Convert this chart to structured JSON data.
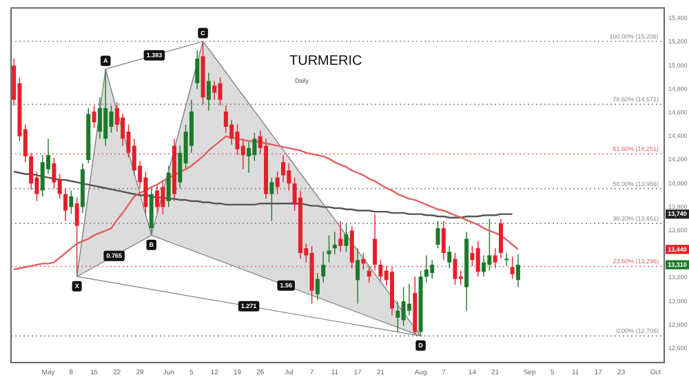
{
  "chart_data": {
    "type": "candlestick",
    "title": "TURMERIC",
    "subtitle": "Daily",
    "categories": [
      null,
      null,
      null,
      null,
      null,
      null,
      "May",
      null,
      null,
      null,
      "8",
      null,
      null,
      null,
      "15",
      null,
      null,
      null,
      "22",
      null,
      null,
      null,
      "29",
      null,
      null,
      null,
      null,
      "Jun",
      null,
      null,
      null,
      "5",
      null,
      null,
      null,
      "12",
      null,
      null,
      null,
      "19",
      null,
      null,
      null,
      "26",
      null,
      null,
      null,
      null,
      "Jul",
      null,
      null,
      null,
      "7",
      null,
      null,
      null,
      "11",
      null,
      null,
      null,
      "17",
      null,
      null,
      null,
      "21",
      null,
      null,
      null,
      null,
      null,
      null,
      "Aug",
      null,
      null,
      null,
      "7",
      null,
      null,
      null,
      null,
      "14",
      null,
      null,
      null,
      "21",
      null,
      null,
      null,
      null,
      null,
      "Sep",
      null,
      null,
      null,
      "5",
      null,
      null,
      null,
      "11",
      null,
      null,
      null,
      "17",
      null,
      null,
      null,
      "23",
      null,
      null,
      null,
      null,
      null,
      "Oct",
      null
    ],
    "ohlc": [
      [
        15000,
        15060,
        14660,
        14710
      ],
      [
        14850,
        14900,
        14360,
        14400
      ],
      [
        14460,
        14500,
        14180,
        14230
      ],
      [
        14230,
        14260,
        13950,
        14000
      ],
      [
        14050,
        14100,
        13850,
        13910
      ],
      [
        13940,
        14240,
        13890,
        14180
      ],
      [
        14120,
        14380,
        14080,
        14240
      ],
      [
        14170,
        14220,
        13960,
        14010
      ],
      [
        14030,
        14080,
        13870,
        13910
      ],
      [
        13910,
        13960,
        13680,
        13770
      ],
      [
        13800,
        13940,
        13740,
        13890
      ],
      [
        13830,
        13880,
        13210,
        13640
      ],
      [
        13800,
        14170,
        13750,
        14120
      ],
      [
        14200,
        14640,
        14170,
        14590
      ],
      [
        14610,
        14660,
        14470,
        14520
      ],
      [
        14440,
        14730,
        14380,
        14640
      ],
      [
        14380,
        14970,
        14320,
        14640
      ],
      [
        14480,
        14660,
        14430,
        14610
      ],
      [
        14640,
        14690,
        14440,
        14500
      ],
      [
        14560,
        14590,
        14320,
        14380
      ],
      [
        14440,
        14500,
        14220,
        14260
      ],
      [
        14320,
        14380,
        14070,
        14110
      ],
      [
        14150,
        14190,
        13960,
        14010
      ],
      [
        14050,
        14100,
        13740,
        13800
      ],
      [
        13620,
        13960,
        13560,
        13910
      ],
      [
        13940,
        13980,
        13750,
        13800
      ],
      [
        13970,
        14030,
        13740,
        13800
      ],
      [
        13850,
        14150,
        13800,
        14090
      ],
      [
        14320,
        14380,
        13850,
        13910
      ],
      [
        14010,
        14320,
        13960,
        14260
      ],
      [
        14170,
        14500,
        14120,
        14440
      ],
      [
        14320,
        14710,
        14260,
        14610
      ],
      [
        14850,
        15130,
        14800,
        15060
      ],
      [
        15080,
        15206,
        14670,
        14730
      ],
      [
        14710,
        14940,
        14620,
        14870
      ],
      [
        14830,
        14870,
        14710,
        14770
      ],
      [
        14850,
        14900,
        14660,
        14710
      ],
      [
        14610,
        14660,
        14430,
        14480
      ],
      [
        14500,
        14540,
        14330,
        14380
      ],
      [
        14440,
        14500,
        14240,
        14290
      ],
      [
        14320,
        14380,
        14120,
        14240
      ],
      [
        14230,
        14350,
        14090,
        14300
      ],
      [
        14240,
        14430,
        14190,
        14380
      ],
      [
        14400,
        14450,
        14250,
        14300
      ],
      [
        14320,
        14380,
        13870,
        13910
      ],
      [
        13910,
        14050,
        13680,
        14010
      ],
      [
        14050,
        14100,
        13910,
        13970
      ],
      [
        14180,
        14240,
        14010,
        14070
      ],
      [
        14110,
        14170,
        13940,
        14000
      ],
      [
        14000,
        14050,
        13770,
        13820
      ],
      [
        13880,
        13940,
        13360,
        13410
      ],
      [
        13450,
        13490,
        13330,
        13390
      ],
      [
        13410,
        13470,
        12980,
        13090
      ],
      [
        13060,
        13240,
        13010,
        13190
      ],
      [
        13210,
        13420,
        13160,
        13310
      ],
      [
        13400,
        13560,
        13330,
        13430
      ],
      [
        13450,
        13590,
        13400,
        13480
      ],
      [
        13530,
        13680,
        13420,
        13470
      ],
      [
        13470,
        13660,
        13420,
        13570
      ],
      [
        13600,
        13640,
        13280,
        13330
      ],
      [
        13180,
        13450,
        12980,
        13350
      ],
      [
        13360,
        13410,
        13270,
        13320
      ],
      [
        13260,
        13300,
        13160,
        13210
      ],
      [
        13530,
        13740,
        13260,
        13310
      ],
      [
        13310,
        13350,
        13160,
        13210
      ],
      [
        13260,
        13300,
        13130,
        13180
      ],
      [
        13250,
        13290,
        12880,
        12940
      ],
      [
        12860,
        13000,
        12740,
        12920
      ],
      [
        12840,
        13120,
        12790,
        13000
      ],
      [
        12920,
        13150,
        12880,
        12980
      ],
      [
        13070,
        13210,
        12720,
        12740
      ],
      [
        12740,
        13260,
        12706,
        13210
      ],
      [
        13210,
        13390,
        13160,
        13270
      ],
      [
        13240,
        13350,
        13190,
        13310
      ],
      [
        13480,
        13680,
        13450,
        13620
      ],
      [
        13620,
        13680,
        13350,
        13410
      ],
      [
        13330,
        13470,
        13280,
        13420
      ],
      [
        13360,
        13410,
        13140,
        13190
      ],
      [
        13210,
        13260,
        13140,
        13190
      ],
      [
        13120,
        13590,
        12920,
        13530
      ],
      [
        13410,
        13470,
        13300,
        13350
      ],
      [
        13450,
        13510,
        13210,
        13250
      ],
      [
        13250,
        13390,
        13210,
        13330
      ],
      [
        13310,
        13700,
        13260,
        13390
      ],
      [
        13390,
        13450,
        13280,
        13330
      ],
      [
        13660,
        13700,
        13360,
        13410
      ],
      [
        13350,
        13410,
        13300,
        13360
      ],
      [
        13290,
        13380,
        13190,
        13230
      ],
      [
        13180,
        13400,
        13120,
        13310
      ],
      null,
      null,
      null,
      null,
      null,
      null,
      null,
      null,
      null,
      null,
      null,
      null,
      null,
      null,
      null,
      null,
      null,
      null,
      null,
      null,
      null,
      null,
      null,
      null,
      null
    ],
    "series": [
      {
        "type": "line",
        "color": "#e06060",
        "values": [
          13270,
          13280,
          13290,
          13300,
          13310,
          13320,
          13320,
          13330,
          13370,
          13410,
          13450,
          13490,
          13510,
          13530,
          13560,
          13580,
          13600,
          13620,
          13690,
          13750,
          13820,
          13890,
          13920,
          13940,
          13970,
          13990,
          14020,
          14050,
          14070,
          14100,
          14120,
          14150,
          14190,
          14230,
          14280,
          14320,
          14360,
          14400,
          14390,
          14380,
          14370,
          14360,
          14360,
          14350,
          14340,
          14330,
          14320,
          14310,
          14300,
          14290,
          14280,
          14260,
          14250,
          14240,
          14230,
          14210,
          14180,
          14160,
          14140,
          14110,
          14090,
          14070,
          14040,
          14020,
          13990,
          13960,
          13940,
          13910,
          13890,
          13870,
          13860,
          13840,
          13820,
          13800,
          13780,
          13770,
          13750,
          13730,
          13710,
          13690,
          13670,
          13650,
          13620,
          13600,
          13580,
          13560,
          13520,
          13480,
          13440,
          null,
          null,
          null,
          null,
          null,
          null,
          null,
          null,
          null,
          null,
          null,
          null,
          null,
          null,
          null,
          null,
          null,
          null,
          null,
          null,
          null,
          null,
          null,
          null,
          null
        ]
      },
      {
        "type": "line",
        "color": "#555555",
        "values": [
          14100,
          14090,
          14080,
          14080,
          14070,
          14060,
          14050,
          14040,
          14030,
          14030,
          14020,
          14010,
          14000,
          13990,
          13980,
          13970,
          13960,
          13950,
          13940,
          13930,
          13920,
          13910,
          13900,
          13900,
          13890,
          13880,
          13880,
          13870,
          13870,
          13860,
          13860,
          13850,
          13850,
          13840,
          13840,
          13830,
          13830,
          13820,
          13820,
          13820,
          13820,
          13820,
          13820,
          13830,
          13830,
          13830,
          13830,
          13830,
          13830,
          13830,
          13830,
          13820,
          13810,
          13810,
          13800,
          13800,
          13790,
          13790,
          13780,
          13780,
          13770,
          13770,
          13770,
          13760,
          13760,
          13760,
          13750,
          13750,
          13750,
          13740,
          13740,
          13740,
          13730,
          13730,
          13720,
          13720,
          13710,
          13710,
          13710,
          13720,
          13720,
          13720,
          13730,
          13730,
          13730,
          13740,
          13740,
          13740,
          null,
          null,
          null,
          null,
          null,
          null,
          null,
          null,
          null,
          null,
          null,
          null,
          null,
          null,
          null,
          null,
          null,
          null,
          null,
          null,
          null,
          null,
          null,
          null,
          null,
          null
        ]
      },
      {
        "type": "line",
        "color": "#808080",
        "values": [
          null,
          null,
          null,
          null,
          null,
          null,
          null,
          null,
          null,
          null,
          null,
          13210,
          null,
          null,
          null,
          null,
          14970,
          null,
          null,
          null,
          null,
          null,
          null,
          null,
          13560,
          null,
          null,
          null,
          null,
          null,
          null,
          null,
          null,
          15206,
          null,
          null,
          null,
          null,
          null,
          null,
          null,
          null,
          null,
          null,
          null,
          null,
          null,
          null,
          null,
          null,
          null,
          null,
          null,
          null,
          null,
          null,
          null,
          null,
          null,
          null,
          null,
          null,
          null,
          null,
          null,
          null,
          null,
          null,
          null,
          null,
          null,
          12706,
          null,
          null,
          null,
          null,
          null,
          null,
          null,
          null,
          null,
          null,
          null,
          null,
          null,
          null,
          null,
          null,
          null,
          null,
          null,
          null,
          null,
          null,
          null,
          null,
          null,
          null,
          null,
          null,
          null,
          null,
          null,
          null,
          null,
          null,
          null,
          null,
          null,
          null,
          null,
          null,
          null,
          null
        ]
      }
    ],
    "ylim": [
      12480,
      15490
    ],
    "yticks": [
      {
        "value": 12600,
        "label": "12,600"
      },
      {
        "value": 12800,
        "label": "12,800"
      },
      {
        "value": 13000,
        "label": "13,000"
      },
      {
        "value": 13200,
        "label": "13,200"
      },
      {
        "value": 13600,
        "label": "13,600"
      },
      {
        "value": 13800,
        "label": "13,800"
      },
      {
        "value": 14000,
        "label": "14,000"
      },
      {
        "value": 14200,
        "label": "14,200"
      },
      {
        "value": 14400,
        "label": "14,400"
      },
      {
        "value": 14600,
        "label": "14,600"
      },
      {
        "value": 14800,
        "label": "14,800"
      },
      {
        "value": 15000,
        "label": "15,000"
      },
      {
        "value": 15200,
        "label": "15,200"
      },
      {
        "value": 15400,
        "label": "15,400"
      }
    ],
    "ref_lines": [
      {
        "axis": "y",
        "value": 15206,
        "label": "100.00% (15,206)",
        "color": "#888888",
        "line_style": "dotted"
      },
      {
        "axis": "y",
        "value": 14671,
        "label": "78.60% (14,671)",
        "color": "#888888",
        "line_style": "dotted"
      },
      {
        "axis": "y",
        "value": 14251,
        "label": "61.80% (14,251)",
        "color": "#e06666",
        "line_style": "dotted"
      },
      {
        "axis": "y",
        "value": 13956,
        "label": "50.00% (13,956)",
        "color": "#888888",
        "line_style": "dotted"
      },
      {
        "axis": "y",
        "value": 13661,
        "label": "38.20% (13,661)",
        "color": "#888888",
        "line_style": "dotted"
      },
      {
        "axis": "y",
        "value": 13296,
        "label": "23.60% (13,296)",
        "color": "#e06666",
        "line_style": "dotted"
      },
      {
        "axis": "y",
        "value": 12706,
        "label": "0.00% (12,706)",
        "color": "#888888",
        "line_style": "dotted"
      }
    ],
    "annotations": [
      "0.765",
      "1.383",
      "1.56",
      "1.271",
      {
        "text": "X",
        "y": 13210
      },
      {
        "text": "A",
        "y": 14970
      },
      {
        "text": "B",
        "y": 13560
      },
      {
        "text": "C",
        "y": 15206
      },
      {
        "text": "D",
        "y": 12706
      },
      {
        "text": "13,740",
        "y": 13740
      },
      {
        "text": "13,440",
        "y": 13440
      },
      {
        "text": "13,310",
        "y": 13310
      }
    ],
    "grid": false,
    "legend": false
  }
}
